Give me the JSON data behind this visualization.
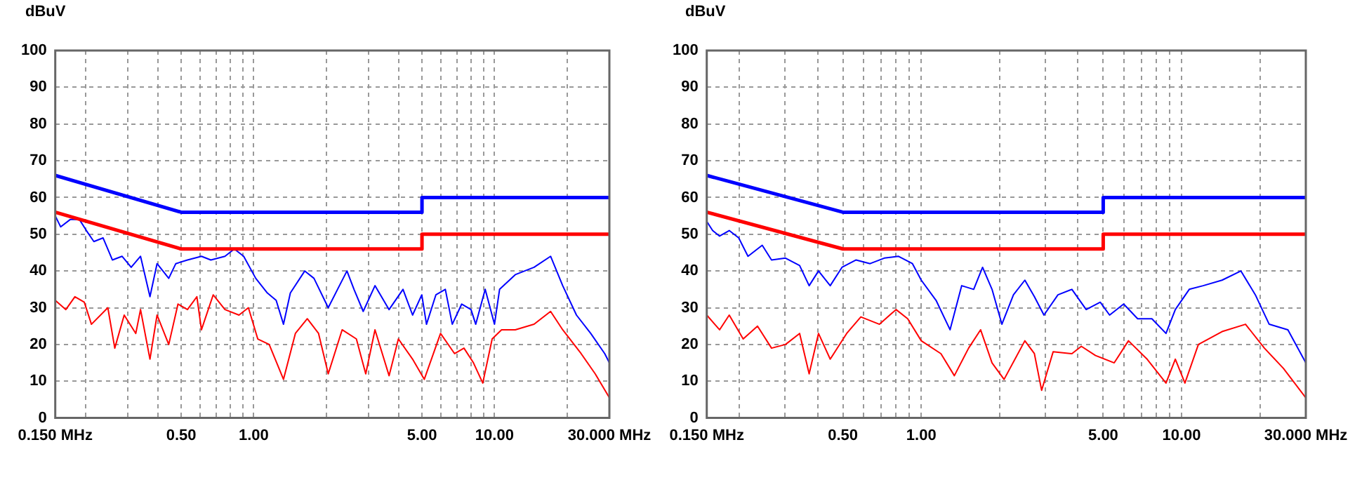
{
  "chart_data": [
    {
      "type": "line",
      "ylabel": "dBuV",
      "log": "x",
      "grid": true,
      "marker": "none",
      "xlim": [
        0.15,
        30
      ],
      "ylim": [
        0,
        100
      ],
      "xticks": [
        {
          "value": 0.15,
          "label": "0.150 MHz"
        },
        {
          "value": 0.2,
          "label": null
        },
        {
          "value": 0.3,
          "label": null
        },
        {
          "value": 0.4,
          "label": null
        },
        {
          "value": 0.5,
          "label": "0.50"
        },
        {
          "value": 0.6,
          "label": null
        },
        {
          "value": 0.7,
          "label": null
        },
        {
          "value": 0.8,
          "label": null
        },
        {
          "value": 0.9,
          "label": null
        },
        {
          "value": 1,
          "label": "1.00"
        },
        {
          "value": 2,
          "label": null
        },
        {
          "value": 3,
          "label": null
        },
        {
          "value": 4,
          "label": null
        },
        {
          "value": 5,
          "label": "5.00"
        },
        {
          "value": 6,
          "label": null
        },
        {
          "value": 7,
          "label": null
        },
        {
          "value": 8,
          "label": null
        },
        {
          "value": 9,
          "label": null
        },
        {
          "value": 10,
          "label": "10.00"
        },
        {
          "value": 20,
          "label": null
        },
        {
          "value": 30,
          "label": "30.000 MHz"
        }
      ],
      "yticks": [
        0,
        10,
        20,
        30,
        40,
        50,
        60,
        70,
        80,
        90,
        100
      ],
      "series": [
        {
          "color": "#0000ff",
          "x": [
            0.15,
            0.5,
            5,
            5,
            30
          ],
          "values": [
            66,
            56,
            56,
            60,
            60
          ]
        },
        {
          "color": "#ff0000",
          "x": [
            0.15,
            0.5,
            5,
            5,
            30
          ],
          "values": [
            56,
            46,
            46,
            50,
            50
          ]
        },
        {
          "color": "#0000ff",
          "x": [
            0.15,
            0.158,
            0.173,
            0.189,
            0.202,
            0.217,
            0.237,
            0.259,
            0.284,
            0.31,
            0.339,
            0.371,
            0.397,
            0.444,
            0.475,
            0.531,
            0.607,
            0.664,
            0.76,
            0.831,
            0.909,
            1.02,
            1.14,
            1.24,
            1.33,
            1.42,
            1.63,
            1.78,
            2.04,
            2.23,
            2.44,
            2.61,
            2.85,
            3.19,
            3.65,
            4.17,
            4.57,
            4.99,
            5.22,
            5.71,
            6.25,
            6.68,
            7.31,
            7.99,
            8.36,
            9.15,
            10,
            10.5,
            12.2,
            14.6,
            17.1,
            19.2,
            21.9,
            25.1,
            28.7,
            30
          ],
          "values": [
            55,
            52,
            54,
            54,
            51,
            48,
            49,
            43,
            44,
            41,
            44,
            33,
            42,
            38,
            42,
            43,
            44,
            43,
            44,
            46,
            44,
            38,
            34,
            32,
            25.5,
            34,
            40,
            38,
            30,
            35,
            40,
            35,
            29,
            36,
            29.5,
            35,
            28,
            33.5,
            25.5,
            33.5,
            35,
            25.5,
            31,
            29.5,
            25.5,
            35,
            25.5,
            35,
            39,
            41,
            44,
            36,
            28,
            23,
            17.5,
            15
          ]
        },
        {
          "color": "#ff0000",
          "x": [
            0.15,
            0.166,
            0.181,
            0.198,
            0.212,
            0.248,
            0.265,
            0.29,
            0.324,
            0.339,
            0.371,
            0.397,
            0.444,
            0.485,
            0.531,
            0.581,
            0.607,
            0.679,
            0.76,
            0.869,
            0.951,
            1.04,
            1.16,
            1.33,
            1.49,
            1.67,
            1.86,
            2.04,
            2.33,
            2.67,
            2.92,
            3.19,
            3.65,
            3.99,
            4.57,
            5.11,
            5.97,
            6.83,
            7.47,
            8.18,
            8.94,
            9.78,
            10.7,
            12.2,
            14.6,
            17.1,
            19.2,
            22.9,
            26.2,
            30
          ],
          "values": [
            32,
            29.5,
            33,
            31.5,
            25.5,
            30,
            19,
            28,
            23,
            29.5,
            16,
            28,
            20,
            31,
            29.5,
            33,
            24,
            33.5,
            29.5,
            28,
            30,
            21.5,
            20,
            10.5,
            23,
            27,
            23,
            12,
            24,
            21.5,
            12,
            24,
            11.5,
            21.5,
            16,
            10.5,
            23,
            17.5,
            19,
            15,
            9.5,
            21.5,
            24,
            24,
            25.5,
            29,
            24,
            17.5,
            12,
            5.5
          ]
        }
      ]
    },
    {
      "type": "line",
      "ylabel": "dBuV",
      "log": "x",
      "grid": true,
      "marker": "none",
      "xlim": [
        0.15,
        30
      ],
      "ylim": [
        0,
        100
      ],
      "xticks": [
        {
          "value": 0.15,
          "label": "0.150 MHz"
        },
        {
          "value": 0.2,
          "label": null
        },
        {
          "value": 0.3,
          "label": null
        },
        {
          "value": 0.4,
          "label": null
        },
        {
          "value": 0.5,
          "label": "0.50"
        },
        {
          "value": 0.6,
          "label": null
        },
        {
          "value": 0.7,
          "label": null
        },
        {
          "value": 0.8,
          "label": null
        },
        {
          "value": 0.9,
          "label": null
        },
        {
          "value": 1,
          "label": "1.00"
        },
        {
          "value": 2,
          "label": null
        },
        {
          "value": 3,
          "label": null
        },
        {
          "value": 4,
          "label": null
        },
        {
          "value": 5,
          "label": "5.00"
        },
        {
          "value": 6,
          "label": null
        },
        {
          "value": 7,
          "label": null
        },
        {
          "value": 8,
          "label": null
        },
        {
          "value": 9,
          "label": null
        },
        {
          "value": 10,
          "label": "10.00"
        },
        {
          "value": 20,
          "label": null
        },
        {
          "value": 30,
          "label": "30.000 MHz"
        }
      ],
      "yticks": [
        0,
        10,
        20,
        30,
        40,
        50,
        60,
        70,
        80,
        90,
        100
      ],
      "series": [
        {
          "color": "#0000ff",
          "x": [
            0.15,
            0.5,
            5,
            5,
            30
          ],
          "values": [
            66,
            56,
            56,
            60,
            60
          ]
        },
        {
          "color": "#ff0000",
          "x": [
            0.15,
            0.5,
            5,
            5,
            30
          ],
          "values": [
            56,
            46,
            46,
            50,
            50
          ]
        },
        {
          "color": "#0000ff",
          "x": [
            0.15,
            0.158,
            0.168,
            0.183,
            0.199,
            0.216,
            0.245,
            0.266,
            0.301,
            0.341,
            0.371,
            0.403,
            0.447,
            0.496,
            0.562,
            0.636,
            0.721,
            0.816,
            0.925,
            1,
            1.14,
            1.29,
            1.43,
            1.59,
            1.72,
            1.87,
            2.04,
            2.26,
            2.5,
            2.72,
            2.96,
            3.35,
            3.79,
            4.3,
            4.87,
            5.29,
            5.99,
            6.78,
            7.69,
            8.71,
            9.46,
            10.7,
            12.1,
            14.3,
            16.9,
            19.2,
            21.7,
            25.6,
            30
          ],
          "values": [
            53.5,
            51,
            49.5,
            51,
            49,
            44,
            47,
            43,
            43.5,
            41.5,
            36,
            40,
            36,
            41,
            43,
            42,
            43.5,
            44,
            42,
            37.5,
            32,
            24,
            36,
            35,
            41,
            35,
            25.5,
            33.5,
            37.5,
            33,
            28,
            33.5,
            35,
            29.5,
            31.5,
            28,
            31,
            27,
            27,
            23,
            29.5,
            35,
            36,
            37.5,
            40,
            33.5,
            25.5,
            24,
            15
          ]
        },
        {
          "color": "#ff0000",
          "x": [
            0.15,
            0.168,
            0.183,
            0.207,
            0.235,
            0.266,
            0.301,
            0.341,
            0.371,
            0.403,
            0.447,
            0.517,
            0.586,
            0.691,
            0.8,
            0.887,
            1,
            1.19,
            1.34,
            1.52,
            1.69,
            1.87,
            2.08,
            2.5,
            2.72,
            2.9,
            3.21,
            3.79,
            4.12,
            4.67,
            5.51,
            6.25,
            7.37,
            8.71,
            9.46,
            10.3,
            11.6,
            14.3,
            17.6,
            20.8,
            24.6,
            30
          ],
          "values": [
            28,
            24,
            28,
            21.5,
            25,
            19,
            20,
            23,
            12,
            23,
            16,
            23,
            27.5,
            25.5,
            29.5,
            27,
            21,
            17.5,
            11.5,
            19,
            24,
            15,
            10.5,
            21,
            17.5,
            7.5,
            18,
            17.5,
            19.5,
            17,
            15,
            21,
            16,
            9.5,
            16,
            9.5,
            20,
            23.5,
            25.5,
            19,
            13.5,
            5.5
          ]
        }
      ]
    }
  ]
}
